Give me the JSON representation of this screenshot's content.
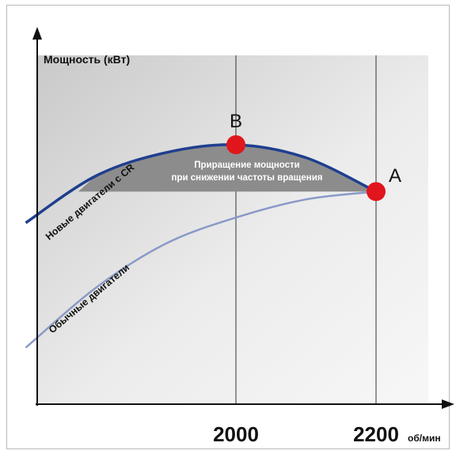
{
  "chart_data": {
    "type": "line",
    "ylabel": "Мощность (кВт)",
    "xunit": "об/мин",
    "x_ticks": [
      {
        "value": 2000,
        "label": "2000"
      },
      {
        "value": 2200,
        "label": "2200"
      }
    ],
    "series": [
      {
        "name": "Новые двигатели с CR",
        "color": "#1f3f8f",
        "points": [
          [
            1700,
            0.7
          ],
          [
            1800,
            0.88
          ],
          [
            1900,
            0.97
          ],
          [
            2000,
            1.0
          ],
          [
            2100,
            0.95
          ],
          [
            2200,
            0.82
          ]
        ]
      },
      {
        "name": "Обычные двигатели",
        "color": "#8a9ac8",
        "points": [
          [
            1700,
            0.22
          ],
          [
            1800,
            0.45
          ],
          [
            1900,
            0.62
          ],
          [
            2000,
            0.72
          ],
          [
            2100,
            0.79
          ],
          [
            2200,
            0.82
          ]
        ]
      }
    ],
    "points": [
      {
        "label": "B",
        "x": 2000,
        "y": 1.0,
        "color": "#e0161c"
      },
      {
        "label": "A",
        "x": 2200,
        "y": 0.82,
        "color": "#e0161c"
      }
    ],
    "shaded_region": {
      "label_line1": "Приращение мощности",
      "label_line2": "при снижении частоты вращения",
      "color": "#8c8c8c"
    },
    "grid": false
  }
}
